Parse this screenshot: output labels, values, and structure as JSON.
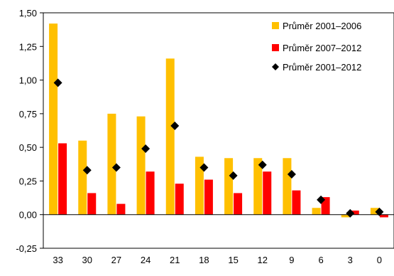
{
  "chart_data": {
    "type": "bar",
    "categories": [
      "33",
      "30",
      "27",
      "24",
      "21",
      "18",
      "15",
      "12",
      "9",
      "6",
      "3",
      "0"
    ],
    "series": [
      {
        "name": "Průměr 2001–2006",
        "kind": "bar",
        "color": "#FFC000",
        "values": [
          1.42,
          0.55,
          0.75,
          0.73,
          1.16,
          0.43,
          0.42,
          0.42,
          0.42,
          0.05,
          -0.02,
          0.05
        ]
      },
      {
        "name": "Průměr 2007–2012",
        "kind": "bar",
        "color": "#FF0000",
        "values": [
          0.53,
          0.16,
          0.08,
          0.32,
          0.23,
          0.26,
          0.16,
          0.32,
          0.18,
          0.13,
          0.03,
          -0.02
        ]
      },
      {
        "name": "Průměr 2001–2012",
        "kind": "marker",
        "color": "#000000",
        "values": [
          0.98,
          0.33,
          0.35,
          0.49,
          0.66,
          0.35,
          0.29,
          0.37,
          0.3,
          0.11,
          0.01,
          0.02
        ]
      }
    ],
    "yticks": [
      "1,50",
      "1,25",
      "1,00",
      "0,75",
      "0,50",
      "0,25",
      "0,00",
      "-0,25"
    ],
    "ytick_values": [
      1.5,
      1.25,
      1.0,
      0.75,
      0.5,
      0.25,
      0.0,
      -0.25
    ],
    "ylim": [
      -0.25,
      1.5
    ],
    "grid": false,
    "legend_position": "top-right",
    "title": "",
    "xlabel": "",
    "ylabel": ""
  }
}
